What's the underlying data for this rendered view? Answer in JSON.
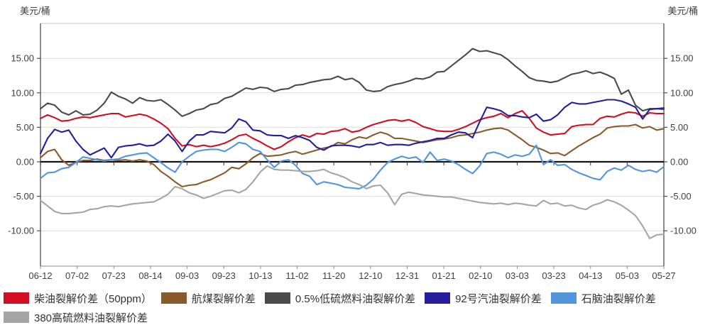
{
  "axis_titles": {
    "left": "美元/桶",
    "right": "美元/桶"
  },
  "chart_data": {
    "type": "line",
    "title": "",
    "xlabel": "",
    "ylabel": "美元/桶",
    "grid": "horizontal",
    "legend_position": "bottom",
    "ylim": [
      -15.1,
      20.1
    ],
    "y_ticks": [
      15,
      10,
      5,
      0,
      -5,
      -10
    ],
    "y_tick_labels": [
      "15.00",
      "10.00",
      "5.00",
      "0.00",
      "-5.00",
      "-10.00"
    ],
    "zero_line": true,
    "x_tick_labels": [
      "06-12",
      "07-02",
      "07-23",
      "08-14",
      "09-03",
      "09-23",
      "10-13",
      "11-02",
      "11-20",
      "12-10",
      "12-31",
      "01-21",
      "02-10",
      "03-03",
      "03-23",
      "04-13",
      "05-03",
      "05-27"
    ],
    "series": [
      {
        "key": "diesel-crack-50ppm",
        "name": "柴油裂解价差（50ppm）",
        "color": "#D10E22",
        "values": [
          6.3,
          6.8,
          6.4,
          5.9,
          6.0,
          6.3,
          6.5,
          6.4,
          6.6,
          6.8,
          7.0,
          7.0,
          6.5,
          6.7,
          6.9,
          6.7,
          6.2,
          5.6,
          4.8,
          3.4,
          2.3,
          2.5,
          2.2,
          2.4,
          2.2,
          2.4,
          2.7,
          3.2,
          3.8,
          4.0,
          3.4,
          2.9,
          2.3,
          1.8,
          2.2,
          2.9,
          3.5,
          3.9,
          3.6,
          4.1,
          4.0,
          4.4,
          4.5,
          4.8,
          4.3,
          4.5,
          5.0,
          5.4,
          5.7,
          6.0,
          6.1,
          5.9,
          6.1,
          5.7,
          5.1,
          4.8,
          4.5,
          4.4,
          4.4,
          4.7,
          5.1,
          5.6,
          6.1,
          6.4,
          6.6,
          7.0,
          6.4,
          7.0,
          7.4,
          6.3,
          4.9,
          4.3,
          3.9,
          4.0,
          4.1,
          5.1,
          5.3,
          5.4,
          5.4,
          6.3,
          6.6,
          6.5,
          6.9,
          7.2,
          7.1,
          6.6,
          7.1,
          7.0,
          7.0
        ]
      },
      {
        "key": "jet-fuel-crack",
        "name": "航煤裂解价差",
        "color": "#8A5A2C",
        "values": [
          0.6,
          1.5,
          1.8,
          0.3,
          -0.5,
          -0.1,
          0.2,
          0.2,
          0.4,
          0.2,
          0.3,
          0.2,
          0.3,
          0.1,
          0.3,
          0.1,
          -0.4,
          -1.4,
          -2.1,
          -2.9,
          -3.6,
          -3.4,
          -3.3,
          -2.9,
          -2.6,
          -2.1,
          -1.6,
          -0.8,
          -1.0,
          -0.3,
          0.6,
          1.2,
          0.8,
          0.9,
          1.0,
          1.3,
          1.5,
          1.1,
          1.4,
          1.7,
          2.0,
          2.2,
          2.8,
          2.6,
          3.2,
          3.6,
          3.4,
          3.9,
          4.3,
          4.0,
          3.4,
          3.4,
          3.2,
          3.0,
          2.8,
          3.0,
          3.2,
          3.3,
          3.5,
          3.8,
          3.9,
          4.1,
          4.3,
          4.6,
          4.8,
          4.9,
          4.6,
          3.9,
          3.2,
          2.4,
          2.1,
          1.7,
          1.2,
          1.3,
          0.9,
          1.6,
          2.3,
          2.9,
          3.5,
          4.0,
          4.9,
          5.1,
          5.2,
          5.2,
          5.4,
          4.9,
          5.1,
          4.6,
          4.8
        ]
      },
      {
        "key": "lsfo-0-5-crack",
        "name": "0.5%低硫燃料油裂解价差",
        "color": "#4A4A4A",
        "values": [
          7.7,
          8.5,
          8.2,
          7.2,
          6.8,
          7.4,
          6.8,
          6.9,
          7.5,
          8.5,
          10.1,
          9.5,
          9.1,
          8.5,
          9.3,
          8.9,
          8.8,
          9.0,
          8.3,
          7.5,
          6.6,
          7.0,
          7.5,
          7.7,
          8.3,
          8.5,
          9.2,
          9.5,
          10.1,
          10.7,
          10.5,
          10.8,
          10.7,
          10.2,
          10.5,
          10.6,
          11.1,
          11.2,
          11.5,
          11.7,
          11.9,
          12.0,
          12.4,
          11.9,
          12.1,
          11.5,
          10.4,
          10.2,
          10.3,
          10.9,
          11.2,
          11.4,
          11.7,
          12.1,
          12.0,
          12.3,
          13.0,
          13.1,
          13.9,
          14.7,
          15.5,
          16.4,
          16.0,
          16.1,
          15.8,
          15.5,
          14.8,
          13.9,
          13.1,
          12.2,
          11.8,
          11.7,
          11.5,
          11.7,
          12.2,
          12.7,
          12.9,
          13.2,
          12.8,
          13.0,
          12.6,
          12.1,
          9.8,
          10.4,
          8.2,
          7.4,
          7.7,
          7.7,
          7.6
        ]
      },
      {
        "key": "gasoline-92-crack",
        "name": "92号汽油裂解价差",
        "color": "#221E9C",
        "values": [
          1.2,
          3.4,
          4.7,
          4.3,
          4.6,
          3.0,
          1.8,
          1.0,
          1.5,
          2.0,
          0.6,
          2.1,
          2.3,
          2.4,
          2.6,
          2.3,
          2.4,
          3.0,
          4.0,
          3.0,
          1.5,
          3.0,
          3.9,
          3.9,
          4.4,
          4.3,
          4.2,
          4.9,
          6.2,
          5.8,
          4.6,
          4.5,
          3.9,
          3.8,
          3.8,
          3.4,
          3.8,
          3.5,
          3.1,
          2.1,
          1.7,
          2.3,
          2.4,
          2.4,
          2.3,
          2.1,
          2.5,
          2.5,
          2.8,
          2.4,
          2.5,
          2.5,
          2.4,
          2.7,
          2.9,
          3.1,
          3.4,
          3.4,
          3.9,
          4.3,
          4.2,
          3.5,
          5.8,
          7.9,
          7.7,
          7.4,
          6.7,
          6.7,
          6.5,
          6.4,
          6.9,
          5.9,
          6.1,
          6.8,
          7.9,
          8.6,
          8.4,
          8.4,
          8.6,
          8.8,
          9.0,
          9.0,
          8.8,
          8.4,
          7.9,
          6.2,
          7.6,
          7.7,
          7.8
        ]
      },
      {
        "key": "naphtha-crack",
        "name": "石脑油裂解价差",
        "color": "#5295DC",
        "values": [
          -2.4,
          -1.6,
          -1.5,
          -1.0,
          -0.8,
          -0.1,
          0.7,
          0.5,
          0.3,
          0.1,
          0.3,
          0.4,
          0.8,
          1.0,
          1.2,
          1.3,
          0.6,
          -0.1,
          -0.9,
          -1.5,
          0.0,
          0.8,
          1.5,
          1.7,
          1.8,
          1.8,
          1.5,
          2.1,
          2.8,
          2.6,
          1.8,
          1.5,
          0.3,
          -0.8,
          0.1,
          0.3,
          -0.5,
          -1.7,
          -2.1,
          -3.3,
          -2.9,
          -3.1,
          -3.3,
          -3.7,
          -3.8,
          -3.9,
          -3.4,
          -2.5,
          -1.2,
          -0.1,
          0.4,
          0.8,
          0.5,
          0.7,
          -0.1,
          1.4,
          0.2,
          0.4,
          0.1,
          -0.4,
          -1.1,
          -1.7,
          -0.6,
          1.2,
          1.4,
          1.1,
          0.6,
          1.0,
          0.8,
          1.1,
          2.4,
          -0.4,
          0.3,
          -0.5,
          -0.4,
          -1.1,
          -1.6,
          -2.0,
          -2.4,
          -2.6,
          -1.4,
          -0.9,
          -1.2,
          -0.5,
          -1.1,
          -1.4,
          -1.2,
          -1.5,
          -0.7
        ]
      },
      {
        "key": "hsfo-380-crack",
        "name": "380高硫燃料油裂解价差",
        "color": "#A5A5A5",
        "values": [
          -5.6,
          -6.4,
          -7.2,
          -7.5,
          -7.5,
          -7.4,
          -7.3,
          -6.9,
          -6.8,
          -6.5,
          -6.4,
          -6.5,
          -6.3,
          -6.1,
          -6.0,
          -5.9,
          -5.8,
          -5.3,
          -4.7,
          -3.6,
          -3.9,
          -4.5,
          -4.8,
          -5.3,
          -5.0,
          -4.6,
          -4.2,
          -4.1,
          -4.5,
          -4.0,
          -2.9,
          -1.5,
          -0.6,
          -1.1,
          -1.2,
          -1.2,
          -1.3,
          -1.4,
          -1.4,
          -1.3,
          -1.1,
          -1.6,
          -1.9,
          -2.3,
          -2.9,
          -3.3,
          -3.9,
          -3.5,
          -3.4,
          -4.5,
          -6.2,
          -4.7,
          -4.4,
          -4.6,
          -4.8,
          -4.9,
          -5.0,
          -5.1,
          -5.1,
          -5.3,
          -5.5,
          -5.7,
          -5.9,
          -6.0,
          -6.1,
          -6.0,
          -6.2,
          -6.0,
          -6.1,
          -6.3,
          -6.4,
          -5.6,
          -6.1,
          -6.0,
          -6.4,
          -6.3,
          -6.7,
          -6.9,
          -6.3,
          -6.0,
          -5.5,
          -5.8,
          -6.3,
          -7.0,
          -7.8,
          -9.3,
          -11.1,
          -10.6,
          -10.5
        ]
      }
    ]
  }
}
